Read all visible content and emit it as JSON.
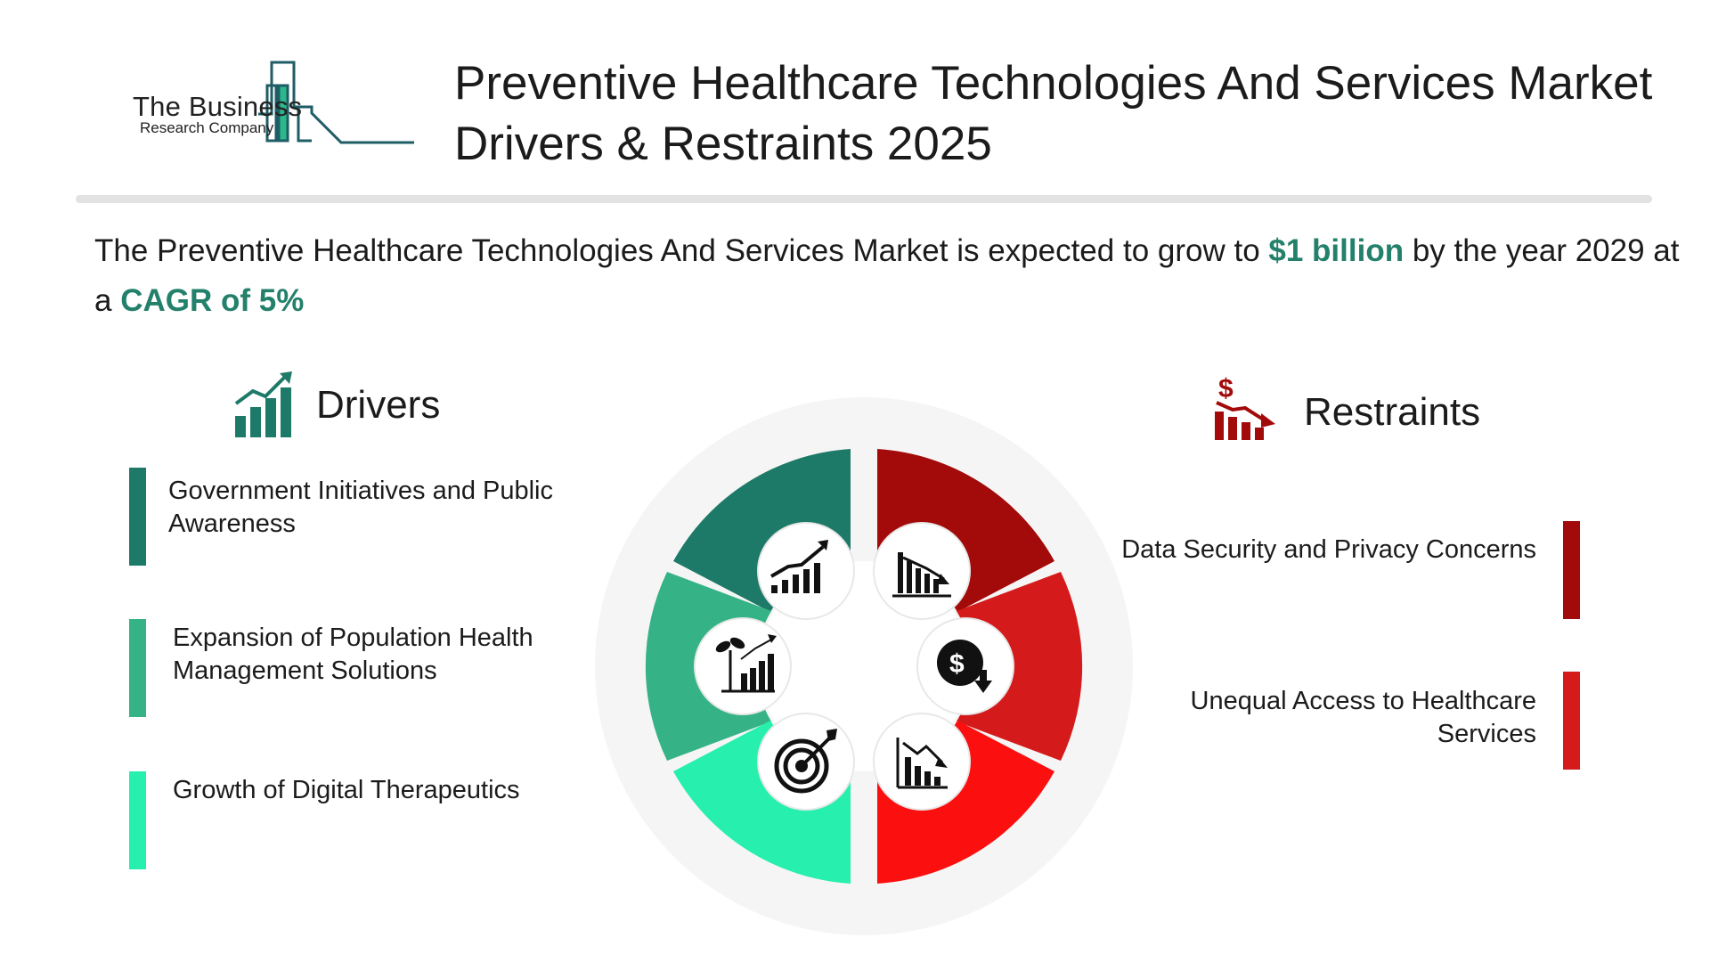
{
  "logo": {
    "line1": "The Business",
    "line2": "Research Company"
  },
  "title": "Preventive Healthcare Technologies And Services Market Drivers & Restraints 2025",
  "summary": {
    "prefix": "The Preventive Healthcare Technologies And Services Market is expected to grow to ",
    "value": "$1 billion",
    "middle": " by the year 2029 at a ",
    "cagr": "CAGR of 5%"
  },
  "drivers": {
    "heading": "Drivers",
    "icon": "growth-chart-icon",
    "items": [
      {
        "label": "Government Initiatives and Public Awareness",
        "color": "#1e7a68"
      },
      {
        "label": "Expansion of Population Health Management Solutions",
        "color": "#35b386"
      },
      {
        "label": "Growth of Digital Therapeutics",
        "color": "#27efad"
      }
    ]
  },
  "restraints": {
    "heading": "Restraints",
    "icon": "dollar-decline-chart-icon",
    "items": [
      {
        "label": "Data Security and Privacy Concerns",
        "color": "#a30a0a"
      },
      {
        "label": "Unequal Access to Healthcare Services",
        "color": "#d41a1a"
      }
    ]
  },
  "wheel": {
    "segments": [
      {
        "name": "driver-1",
        "color": "#1e7a68",
        "icon": "growth-bars-icon"
      },
      {
        "name": "driver-2",
        "color": "#35b386",
        "icon": "plant-growth-chart-icon"
      },
      {
        "name": "driver-3",
        "color": "#27efad",
        "icon": "target-icon"
      },
      {
        "name": "restraint-1",
        "color": "#a30a0a",
        "icon": "declining-bars-icon"
      },
      {
        "name": "restraint-2",
        "color": "#d41a1a",
        "icon": "dollar-down-icon"
      },
      {
        "name": "restraint-3",
        "color": "#fb0f0f",
        "icon": "downtrend-chart-icon"
      }
    ]
  },
  "colors": {
    "accent_green": "#23806b",
    "accent_red": "#a30a0a",
    "divider": "#e2e2e2"
  }
}
